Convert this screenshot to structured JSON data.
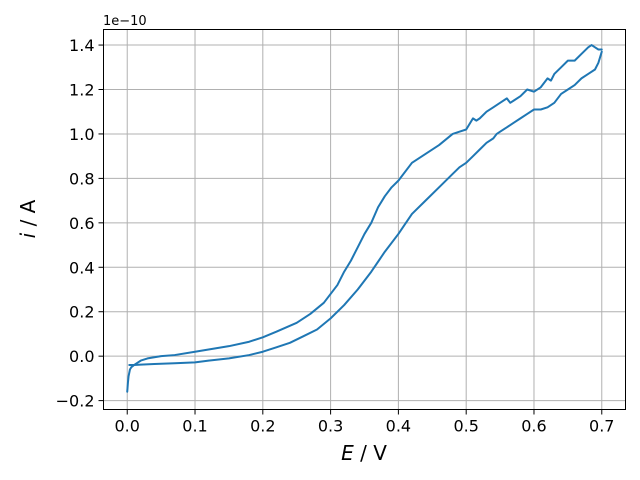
{
  "chart_data": {
    "type": "line",
    "title": "",
    "xlabel_italic": "E",
    "xlabel_rest": " / V",
    "ylabel_italic": "i",
    "ylabel_rest": " / A",
    "y_offset_text": "1e−10",
    "y_scale": 1e-10,
    "xlim": [
      -0.035,
      0.735
    ],
    "ylim": [
      -0.24,
      1.47
    ],
    "x_ticks": [
      0.0,
      0.1,
      0.2,
      0.3,
      0.4,
      0.5,
      0.6,
      0.7
    ],
    "x_tick_labels": [
      "0.0",
      "0.1",
      "0.2",
      "0.3",
      "0.4",
      "0.5",
      "0.6",
      "0.7"
    ],
    "y_ticks": [
      -0.2,
      0.0,
      0.2,
      0.4,
      0.6,
      0.8,
      1.0,
      1.2,
      1.4
    ],
    "y_tick_labels": [
      "−0.2",
      "0.0",
      "0.2",
      "0.4",
      "0.6",
      "0.8",
      "1.0",
      "1.2",
      "1.4"
    ],
    "grid": true,
    "line_color": "#1f77b4",
    "series": [
      {
        "segment": "forward-scan",
        "x": [
          0.0,
          0.001,
          0.002,
          0.004,
          0.006,
          0.01,
          0.015,
          0.02,
          0.03,
          0.05,
          0.07,
          0.1,
          0.13,
          0.15,
          0.18,
          0.2,
          0.22,
          0.25,
          0.27,
          0.29,
          0.3,
          0.31,
          0.32,
          0.33,
          0.34,
          0.35,
          0.36,
          0.37,
          0.38,
          0.39,
          0.4,
          0.42,
          0.44,
          0.46,
          0.48,
          0.49,
          0.5,
          0.51,
          0.515,
          0.52,
          0.53,
          0.54,
          0.55,
          0.56,
          0.565,
          0.57,
          0.58,
          0.59,
          0.6,
          0.61,
          0.62,
          0.625,
          0.63,
          0.64,
          0.65,
          0.66,
          0.67,
          0.68,
          0.685,
          0.69,
          0.695,
          0.7
        ],
        "y": [
          -0.16,
          -0.12,
          -0.09,
          -0.06,
          -0.05,
          -0.04,
          -0.03,
          -0.02,
          -0.01,
          0.0,
          0.005,
          0.02,
          0.035,
          0.045,
          0.065,
          0.085,
          0.11,
          0.15,
          0.19,
          0.24,
          0.28,
          0.32,
          0.38,
          0.43,
          0.49,
          0.55,
          0.6,
          0.67,
          0.72,
          0.76,
          0.79,
          0.87,
          0.91,
          0.95,
          1.0,
          1.01,
          1.02,
          1.07,
          1.06,
          1.07,
          1.1,
          1.12,
          1.14,
          1.16,
          1.14,
          1.15,
          1.17,
          1.2,
          1.19,
          1.21,
          1.25,
          1.24,
          1.27,
          1.3,
          1.33,
          1.33,
          1.36,
          1.39,
          1.4,
          1.39,
          1.38,
          1.38
        ]
      },
      {
        "segment": "reverse-scan",
        "x": [
          0.7,
          0.695,
          0.69,
          0.68,
          0.67,
          0.66,
          0.65,
          0.64,
          0.63,
          0.62,
          0.61,
          0.6,
          0.59,
          0.58,
          0.57,
          0.56,
          0.55,
          0.545,
          0.54,
          0.53,
          0.52,
          0.51,
          0.5,
          0.49,
          0.48,
          0.46,
          0.44,
          0.42,
          0.4,
          0.38,
          0.36,
          0.34,
          0.32,
          0.3,
          0.28,
          0.26,
          0.24,
          0.22,
          0.2,
          0.18,
          0.15,
          0.12,
          0.1,
          0.07,
          0.04,
          0.02,
          0.01,
          0.003
        ],
        "y": [
          1.37,
          1.32,
          1.29,
          1.27,
          1.25,
          1.22,
          1.2,
          1.18,
          1.14,
          1.12,
          1.11,
          1.11,
          1.09,
          1.07,
          1.05,
          1.03,
          1.01,
          1.0,
          0.98,
          0.96,
          0.93,
          0.9,
          0.87,
          0.85,
          0.82,
          0.76,
          0.7,
          0.64,
          0.55,
          0.47,
          0.38,
          0.3,
          0.23,
          0.17,
          0.12,
          0.09,
          0.06,
          0.04,
          0.02,
          0.005,
          -0.01,
          -0.02,
          -0.028,
          -0.032,
          -0.035,
          -0.038,
          -0.04,
          -0.04
        ]
      }
    ]
  }
}
